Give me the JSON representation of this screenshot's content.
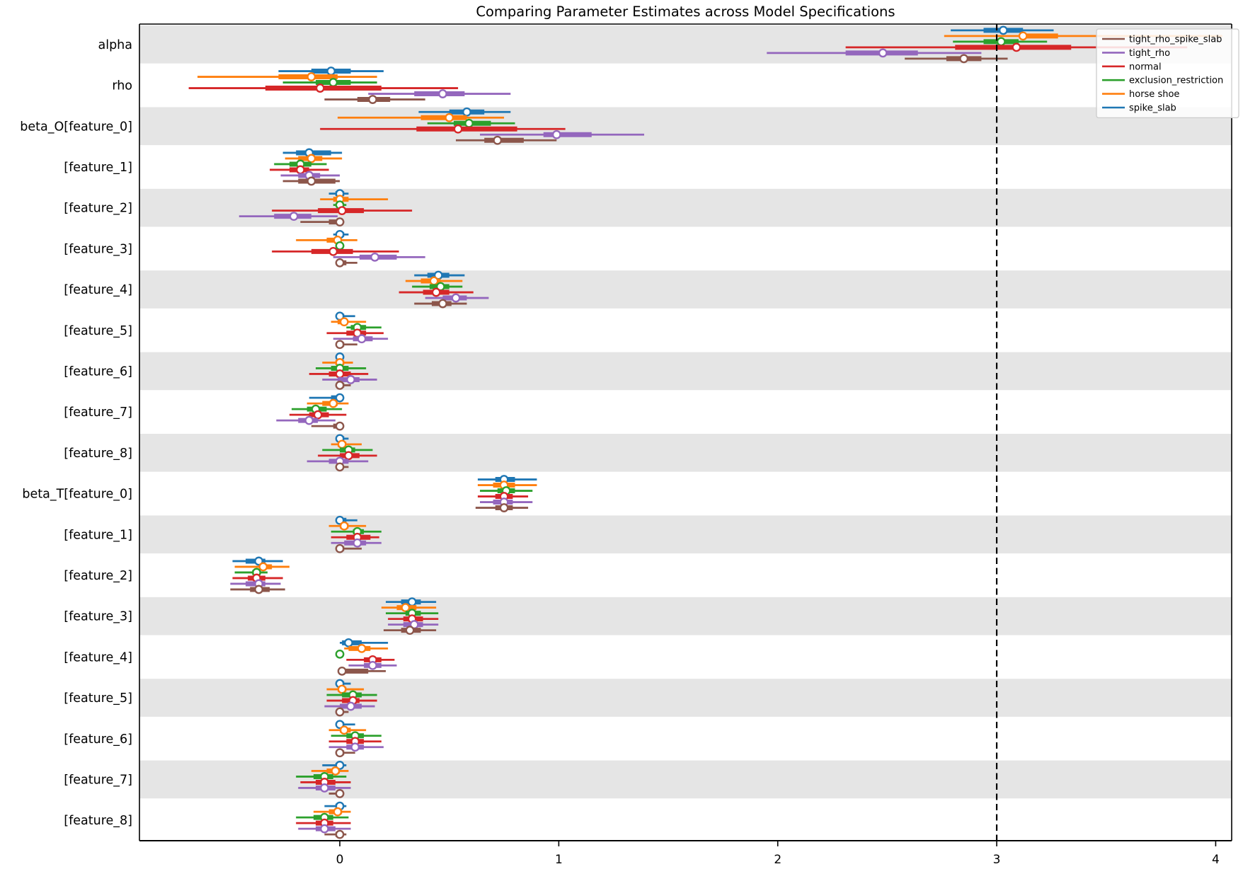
{
  "title": "Comparing Parameter Estimates across Model Specifications",
  "chart_data": {
    "type": "forest",
    "title": "Comparing Parameter Estimates across Model Specifications",
    "xlabel": "",
    "ylabel": "",
    "xticks": [
      0,
      1,
      2,
      3,
      4
    ],
    "xlim": [
      -0.915,
      4.073
    ],
    "reference_line": 3,
    "grid": false,
    "band_color": "#e5e5e5",
    "axis_color": "#000000",
    "legend": {
      "position": "upper right",
      "border_color": "#cccccc",
      "labels": [
        "tight_rho_spike_slab",
        "tight_rho",
        "normal",
        "exclusion_restriction",
        "horse shoe",
        "spike_slab"
      ]
    },
    "models": [
      {
        "name": "spike_slab",
        "color": "#1f77b4"
      },
      {
        "name": "horse shoe",
        "color": "#ff7f0e"
      },
      {
        "name": "exclusion_restriction",
        "color": "#2ca02c"
      },
      {
        "name": "normal",
        "color": "#d62728"
      },
      {
        "name": "tight_rho",
        "color": "#9467bd"
      },
      {
        "name": "tight_rho_spike_slab",
        "color": "#8c564b"
      }
    ],
    "estimate_format": "[outer_lo, outer_hi, inner_lo, inner_hi, median] per model, model order as in models[]",
    "rows": [
      {
        "label": "alpha",
        "shaded": true,
        "estimates": [
          [
            2.79,
            3.26,
            2.94,
            3.12,
            3.03
          ],
          [
            2.76,
            4.03,
            3.11,
            3.28,
            3.12
          ],
          [
            2.8,
            3.23,
            2.94,
            3.1,
            3.02
          ],
          [
            2.31,
            3.87,
            2.81,
            3.34,
            3.09
          ],
          [
            1.95,
            2.93,
            2.31,
            2.64,
            2.48
          ],
          [
            2.58,
            3.05,
            2.77,
            2.93,
            2.85
          ]
        ]
      },
      {
        "label": "rho",
        "shaded": false,
        "estimates": [
          [
            -0.28,
            0.2,
            -0.13,
            0.05,
            -0.04
          ],
          [
            -0.65,
            0.17,
            -0.28,
            -0.01,
            -0.13
          ],
          [
            -0.26,
            0.17,
            -0.11,
            0.05,
            -0.03
          ],
          [
            -0.69,
            0.54,
            -0.34,
            0.19,
            -0.09
          ],
          [
            0.13,
            0.78,
            0.34,
            0.57,
            0.47
          ],
          [
            -0.07,
            0.39,
            0.08,
            0.23,
            0.15
          ]
        ]
      },
      {
        "label": "beta_O[feature_0]",
        "shaded": true,
        "estimates": [
          [
            0.36,
            0.78,
            0.5,
            0.66,
            0.58
          ],
          [
            -0.01,
            0.75,
            0.37,
            0.58,
            0.5
          ],
          [
            0.4,
            0.8,
            0.52,
            0.69,
            0.59
          ],
          [
            -0.09,
            1.03,
            0.35,
            0.81,
            0.54
          ],
          [
            0.64,
            1.39,
            0.93,
            1.15,
            0.99
          ],
          [
            0.53,
            0.99,
            0.66,
            0.84,
            0.72
          ]
        ]
      },
      {
        "label": "[feature_1]",
        "shaded": false,
        "estimates": [
          [
            -0.26,
            0.01,
            -0.2,
            -0.04,
            -0.14
          ],
          [
            -0.25,
            0.01,
            -0.19,
            -0.08,
            -0.13
          ],
          [
            -0.3,
            -0.06,
            -0.23,
            -0.13,
            -0.18
          ],
          [
            -0.32,
            -0.05,
            -0.23,
            -0.14,
            -0.18
          ],
          [
            -0.27,
            0.0,
            -0.19,
            -0.09,
            -0.14
          ],
          [
            -0.26,
            0.0,
            -0.19,
            -0.02,
            -0.13
          ]
        ]
      },
      {
        "label": "[feature_2]",
        "shaded": true,
        "estimates": [
          [
            -0.05,
            0.04,
            -0.02,
            0.02,
            0.0
          ],
          [
            -0.09,
            0.22,
            -0.03,
            0.04,
            0.0
          ],
          [
            -0.03,
            0.03,
            -0.01,
            0.01,
            0.0
          ],
          [
            -0.31,
            0.33,
            -0.1,
            0.11,
            0.01
          ],
          [
            -0.46,
            -0.01,
            -0.3,
            -0.13,
            -0.21
          ],
          [
            -0.18,
            0.02,
            -0.05,
            0.01,
            0.0
          ]
        ]
      },
      {
        "label": "[feature_3]",
        "shaded": false,
        "estimates": [
          [
            -0.03,
            0.04,
            -0.01,
            0.02,
            0.0
          ],
          [
            -0.2,
            0.08,
            -0.06,
            0.0,
            -0.01
          ],
          [
            -0.02,
            0.02,
            -0.01,
            0.01,
            0.0
          ],
          [
            -0.31,
            0.27,
            -0.13,
            0.06,
            -0.03
          ],
          [
            -0.03,
            0.39,
            0.09,
            0.26,
            0.16
          ],
          [
            -0.02,
            0.08,
            0.0,
            0.03,
            0.0
          ]
        ]
      },
      {
        "label": "[feature_4]",
        "shaded": true,
        "estimates": [
          [
            0.34,
            0.57,
            0.4,
            0.5,
            0.45
          ],
          [
            0.3,
            0.56,
            0.37,
            0.46,
            0.43
          ],
          [
            0.33,
            0.56,
            0.41,
            0.5,
            0.46
          ],
          [
            0.27,
            0.61,
            0.38,
            0.5,
            0.44
          ],
          [
            0.39,
            0.68,
            0.47,
            0.58,
            0.53
          ],
          [
            0.34,
            0.58,
            0.42,
            0.51,
            0.47
          ]
        ]
      },
      {
        "label": "[feature_5]",
        "shaded": false,
        "estimates": [
          [
            -0.02,
            0.07,
            -0.01,
            0.02,
            0.0
          ],
          [
            -0.04,
            0.12,
            -0.01,
            0.03,
            0.02
          ],
          [
            0.03,
            0.19,
            0.05,
            0.12,
            0.08
          ],
          [
            -0.06,
            0.2,
            0.03,
            0.12,
            0.08
          ],
          [
            -0.03,
            0.22,
            0.06,
            0.15,
            0.1
          ],
          [
            -0.01,
            0.08,
            0.0,
            0.02,
            0.0
          ]
        ]
      },
      {
        "label": "[feature_6]",
        "shaded": true,
        "estimates": [
          [
            -0.02,
            0.02,
            -0.01,
            0.01,
            0.0
          ],
          [
            -0.08,
            0.06,
            -0.02,
            0.02,
            0.0
          ],
          [
            -0.11,
            0.12,
            -0.04,
            0.04,
            0.0
          ],
          [
            -0.14,
            0.13,
            -0.05,
            0.05,
            0.0
          ],
          [
            -0.08,
            0.17,
            -0.01,
            0.09,
            0.05
          ],
          [
            -0.02,
            0.05,
            0.0,
            0.02,
            0.0
          ]
        ]
      },
      {
        "label": "[feature_7]",
        "shaded": false,
        "estimates": [
          [
            -0.14,
            0.01,
            -0.04,
            0.0,
            0.0
          ],
          [
            -0.15,
            0.04,
            -0.08,
            -0.01,
            -0.03
          ],
          [
            -0.22,
            0.01,
            -0.15,
            -0.06,
            -0.11
          ],
          [
            -0.23,
            0.03,
            -0.14,
            -0.05,
            -0.1
          ],
          [
            -0.29,
            -0.02,
            -0.19,
            -0.1,
            -0.14
          ],
          [
            -0.13,
            0.01,
            -0.03,
            0.0,
            0.0
          ]
        ]
      },
      {
        "label": "[feature_8]",
        "shaded": true,
        "estimates": [
          [
            -0.01,
            0.04,
            0.0,
            0.02,
            0.0
          ],
          [
            -0.04,
            0.1,
            -0.01,
            0.03,
            0.01
          ],
          [
            -0.08,
            0.15,
            0.0,
            0.07,
            0.04
          ],
          [
            -0.1,
            0.17,
            0.0,
            0.09,
            0.04
          ],
          [
            -0.15,
            0.13,
            -0.05,
            0.04,
            0.0
          ],
          [
            -0.02,
            0.04,
            0.0,
            0.01,
            0.0
          ]
        ]
      },
      {
        "label": "beta_T[feature_0]",
        "shaded": false,
        "estimates": [
          [
            0.63,
            0.9,
            0.71,
            0.8,
            0.75
          ],
          [
            0.63,
            0.9,
            0.7,
            0.8,
            0.75
          ],
          [
            0.64,
            0.88,
            0.72,
            0.8,
            0.76
          ],
          [
            0.63,
            0.86,
            0.71,
            0.79,
            0.75
          ],
          [
            0.64,
            0.88,
            0.7,
            0.79,
            0.75
          ],
          [
            0.62,
            0.86,
            0.71,
            0.79,
            0.75
          ]
        ]
      },
      {
        "label": "[feature_1]",
        "shaded": true,
        "estimates": [
          [
            -0.01,
            0.08,
            0.0,
            0.03,
            0.0
          ],
          [
            -0.05,
            0.12,
            0.0,
            0.04,
            0.02
          ],
          [
            -0.04,
            0.19,
            0.06,
            0.11,
            0.08
          ],
          [
            -0.04,
            0.18,
            0.03,
            0.14,
            0.08
          ],
          [
            -0.04,
            0.19,
            0.02,
            0.12,
            0.08
          ],
          [
            -0.02,
            0.1,
            0.0,
            0.02,
            0.0
          ]
        ]
      },
      {
        "label": "[feature_2]",
        "shaded": false,
        "estimates": [
          [
            -0.49,
            -0.26,
            -0.43,
            -0.34,
            -0.37
          ],
          [
            -0.48,
            -0.23,
            -0.36,
            -0.31,
            -0.35
          ],
          [
            -0.48,
            -0.33,
            -0.4,
            -0.37,
            -0.38
          ],
          [
            -0.49,
            -0.26,
            -0.42,
            -0.34,
            -0.38
          ],
          [
            -0.5,
            -0.27,
            -0.43,
            -0.34,
            -0.37
          ],
          [
            -0.5,
            -0.25,
            -0.41,
            -0.32,
            -0.37
          ]
        ]
      },
      {
        "label": "[feature_3]",
        "shaded": true,
        "estimates": [
          [
            0.21,
            0.44,
            0.28,
            0.37,
            0.33
          ],
          [
            0.19,
            0.44,
            0.26,
            0.35,
            0.3
          ],
          [
            0.21,
            0.45,
            0.3,
            0.37,
            0.33
          ],
          [
            0.22,
            0.45,
            0.29,
            0.38,
            0.33
          ],
          [
            0.22,
            0.45,
            0.29,
            0.38,
            0.34
          ],
          [
            0.2,
            0.44,
            0.28,
            0.37,
            0.32
          ]
        ]
      },
      {
        "label": "[feature_4]",
        "shaded": false,
        "estimates": [
          [
            0.0,
            0.22,
            0.01,
            0.1,
            0.04
          ],
          [
            0.02,
            0.22,
            0.04,
            0.14,
            0.1
          ],
          [
            0.0,
            0.01,
            0.0,
            0.01,
            0.0
          ],
          [
            0.03,
            0.25,
            0.11,
            0.19,
            0.15
          ],
          [
            0.04,
            0.26,
            0.11,
            0.19,
            0.15
          ],
          [
            -0.01,
            0.21,
            0.01,
            0.13,
            0.01
          ]
        ]
      },
      {
        "label": "[feature_5]",
        "shaded": true,
        "estimates": [
          [
            -0.02,
            0.05,
            -0.01,
            0.02,
            0.0
          ],
          [
            -0.06,
            0.11,
            -0.01,
            0.03,
            0.01
          ],
          [
            -0.06,
            0.17,
            0.01,
            0.1,
            0.06
          ],
          [
            -0.06,
            0.17,
            0.01,
            0.09,
            0.06
          ],
          [
            -0.07,
            0.16,
            0.0,
            0.1,
            0.05
          ],
          [
            -0.02,
            0.04,
            0.0,
            0.01,
            0.0
          ]
        ]
      },
      {
        "label": "[feature_6]",
        "shaded": false,
        "estimates": [
          [
            -0.02,
            0.07,
            0.0,
            0.02,
            0.0
          ],
          [
            -0.05,
            0.12,
            0.0,
            0.05,
            0.02
          ],
          [
            -0.04,
            0.19,
            0.03,
            0.11,
            0.07
          ],
          [
            -0.05,
            0.19,
            0.03,
            0.11,
            0.07
          ],
          [
            -0.05,
            0.2,
            0.03,
            0.11,
            0.07
          ],
          [
            -0.02,
            0.07,
            0.0,
            0.02,
            0.0
          ]
        ]
      },
      {
        "label": "[feature_7]",
        "shaded": true,
        "estimates": [
          [
            -0.08,
            0.03,
            -0.02,
            0.01,
            0.0
          ],
          [
            -0.13,
            0.04,
            -0.06,
            0.0,
            -0.02
          ],
          [
            -0.2,
            0.03,
            -0.12,
            -0.03,
            -0.07
          ],
          [
            -0.18,
            0.05,
            -0.11,
            -0.02,
            -0.07
          ],
          [
            -0.19,
            0.05,
            -0.11,
            -0.02,
            -0.07
          ],
          [
            -0.05,
            0.02,
            -0.01,
            0.01,
            0.0
          ]
        ]
      },
      {
        "label": "[feature_8]",
        "shaded": false,
        "estimates": [
          [
            -0.07,
            0.03,
            -0.02,
            0.01,
            0.0
          ],
          [
            -0.12,
            0.05,
            -0.05,
            0.01,
            -0.01
          ],
          [
            -0.2,
            0.04,
            -0.12,
            -0.03,
            -0.07
          ],
          [
            -0.2,
            0.05,
            -0.11,
            -0.03,
            -0.07
          ],
          [
            -0.19,
            0.05,
            -0.11,
            -0.02,
            -0.07
          ],
          [
            -0.07,
            0.03,
            -0.02,
            0.01,
            0.0
          ]
        ]
      }
    ]
  }
}
